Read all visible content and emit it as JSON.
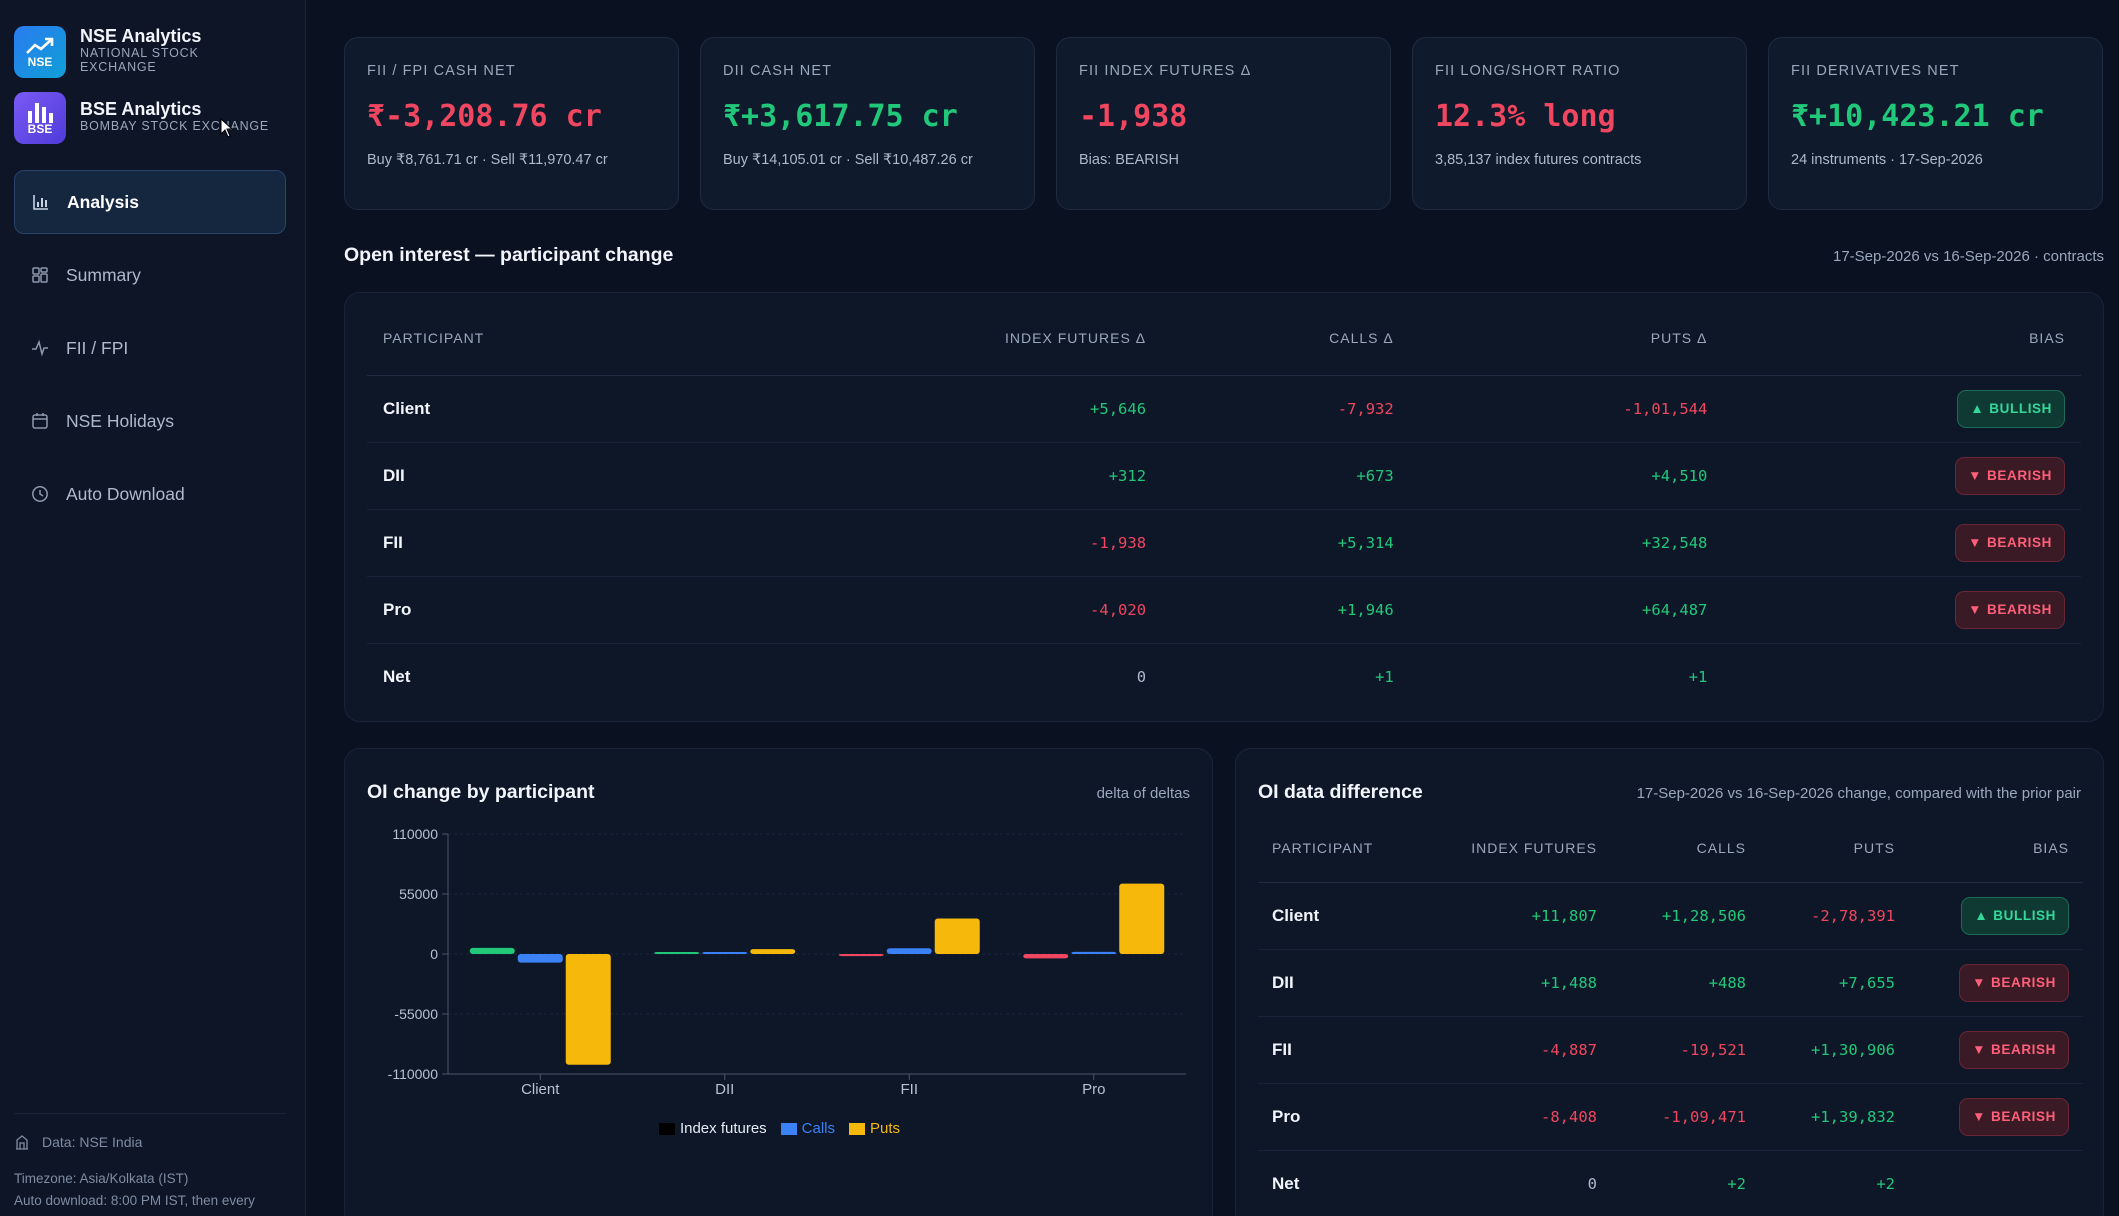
{
  "brands": [
    {
      "title": "NSE Analytics",
      "sub1": "NATIONAL STOCK",
      "sub2": "EXCHANGE",
      "logo": "NSE",
      "icon": "trend-up-icon"
    },
    {
      "title": "BSE Analytics",
      "sub1": "BOMBAY STOCK EXCHANGE",
      "sub2": "",
      "logo": "BSE",
      "icon": "bar-chart-icon"
    }
  ],
  "nav": [
    {
      "label": "Analysis",
      "icon": "bar-chart-icon",
      "active": true
    },
    {
      "label": "Summary",
      "icon": "grid-icon",
      "active": false
    },
    {
      "label": "FII / FPI",
      "icon": "activity-icon",
      "active": false
    },
    {
      "label": "NSE Holidays",
      "icon": "calendar-icon",
      "active": false
    },
    {
      "label": "Auto Download",
      "icon": "clock-icon",
      "active": false
    }
  ],
  "footer": {
    "source": "Data: NSE India",
    "timezone": "Timezone: Asia/Kolkata (IST)",
    "auto_download": "Auto download: 8:00 PM IST, then every"
  },
  "cards": [
    {
      "label": "FII / FPI CASH NET",
      "value": "₹-3,208.76 cr",
      "tone": "red",
      "sub": "Buy ₹8,761.71 cr · Sell ₹11,970.47 cr"
    },
    {
      "label": "DII CASH NET",
      "value": "₹+3,617.75 cr",
      "tone": "green",
      "sub": "Buy ₹14,105.01 cr · Sell ₹10,487.26 cr"
    },
    {
      "label": "FII INDEX FUTURES Δ",
      "value": "-1,938",
      "tone": "red",
      "sub": "Bias: BEARISH"
    },
    {
      "label": "FII LONG/SHORT RATIO",
      "value": "12.3% long",
      "tone": "red",
      "sub": "3,85,137 index futures contracts"
    },
    {
      "label": "FII DERIVATIVES NET",
      "value": "₹+10,423.21 cr",
      "tone": "green",
      "sub": "24 instruments · 17-Sep-2026"
    }
  ],
  "oi_section": {
    "title": "Open interest — participant change",
    "meta": "17-Sep-2026 vs 16-Sep-2026 · contracts",
    "headers": [
      "PARTICIPANT",
      "INDEX FUTURES Δ",
      "CALLS Δ",
      "PUTS Δ",
      "BIAS"
    ],
    "rows": [
      {
        "name": "Client",
        "fut": "+5,646",
        "calls": "-7,932",
        "puts": "-1,01,544",
        "bias": "BULLISH"
      },
      {
        "name": "DII",
        "fut": "+312",
        "calls": "+673",
        "puts": "+4,510",
        "bias": "BEARISH"
      },
      {
        "name": "FII",
        "fut": "-1,938",
        "calls": "+5,314",
        "puts": "+32,548",
        "bias": "BEARISH"
      },
      {
        "name": "Pro",
        "fut": "-4,020",
        "calls": "+1,946",
        "puts": "+64,487",
        "bias": "BEARISH"
      },
      {
        "name": "Net",
        "fut": "0",
        "calls": "+1",
        "puts": "+1",
        "bias": ""
      }
    ]
  },
  "chart_panel": {
    "title": "OI change by participant",
    "meta": "delta of deltas"
  },
  "chart_data": {
    "type": "bar",
    "categories": [
      "Client",
      "DII",
      "FII",
      "Pro"
    ],
    "series": [
      {
        "name": "Index futures",
        "color": "#21c87a",
        "legend_color": "#000000",
        "values": [
          5646,
          312,
          -1938,
          -4020
        ]
      },
      {
        "name": "Calls",
        "color": "#3b82f6",
        "legend_color": "#3b82f6",
        "values": [
          -7932,
          673,
          5314,
          1946
        ]
      },
      {
        "name": "Puts",
        "color": "#f5b80b",
        "legend_color": "#f5b80b",
        "values": [
          -101544,
          4510,
          32548,
          64487
        ]
      }
    ],
    "negative_color": "#f0465f",
    "yticks": [
      "110000",
      "55000",
      "0",
      "-55000",
      "-110000"
    ],
    "ylim": [
      -110000,
      110000
    ],
    "grid": true,
    "legend": "bottom"
  },
  "diff_panel": {
    "title": "OI data difference",
    "meta": "17-Sep-2026 vs 16-Sep-2026 change, compared with the prior pair",
    "headers": [
      "PARTICIPANT",
      "INDEX FUTURES",
      "CALLS",
      "PUTS",
      "BIAS"
    ],
    "rows": [
      {
        "name": "Client",
        "fut": "+11,807",
        "calls": "+1,28,506",
        "puts": "-2,78,391",
        "bias": "BULLISH"
      },
      {
        "name": "DII",
        "fut": "+1,488",
        "calls": "+488",
        "puts": "+7,655",
        "bias": "BEARISH"
      },
      {
        "name": "FII",
        "fut": "-4,887",
        "calls": "-19,521",
        "puts": "+1,30,906",
        "bias": "BEARISH"
      },
      {
        "name": "Pro",
        "fut": "-8,408",
        "calls": "-1,09,471",
        "puts": "+1,39,832",
        "bias": "BEARISH"
      },
      {
        "name": "Net",
        "fut": "0",
        "calls": "+2",
        "puts": "+2",
        "bias": ""
      }
    ]
  }
}
